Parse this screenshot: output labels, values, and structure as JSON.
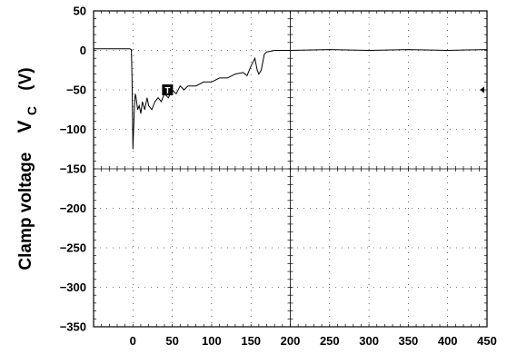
{
  "chart_data": {
    "type": "line",
    "ylabel_main": "Clamp voltage",
    "ylabel_symbol": "V",
    "ylabel_subscript": "C",
    "ylabel_unit": "(V)",
    "xlim": [
      -50,
      450
    ],
    "ylim": [
      -350,
      50
    ],
    "x_ticks": [
      "0",
      "50",
      "100",
      "150",
      "200",
      "250",
      "300",
      "350",
      "400",
      "450"
    ],
    "y_ticks": [
      "50",
      "0",
      "−50",
      "−100",
      "−150",
      "−200",
      "−250",
      "−300",
      "−350"
    ],
    "trigger_marker": "T",
    "grid": "dotted",
    "series": [
      {
        "x": [
          -50,
          -30,
          -10,
          -4,
          -2,
          -1,
          0,
          1,
          2,
          3,
          4,
          6,
          8,
          10,
          12,
          15,
          18,
          20,
          24,
          28,
          32,
          36,
          40,
          45,
          50,
          55,
          60,
          65,
          70,
          80,
          90,
          100,
          110,
          120,
          130,
          140,
          145,
          150,
          155,
          158,
          160,
          163,
          167,
          170,
          175,
          180,
          190,
          200,
          250,
          300,
          350,
          400,
          450
        ],
        "y": [
          2,
          2,
          2,
          2,
          1,
          -40,
          -125,
          -95,
          -70,
          -55,
          -60,
          -75,
          -70,
          -80,
          -65,
          -75,
          -60,
          -70,
          -75,
          -65,
          -60,
          -65,
          -55,
          -60,
          -50,
          -55,
          -45,
          -50,
          -45,
          -45,
          -40,
          -40,
          -35,
          -35,
          -30,
          -28,
          -32,
          -20,
          -10,
          -25,
          -30,
          -25,
          -5,
          -2,
          -1,
          0,
          0,
          0,
          1,
          0,
          1,
          0,
          1
        ]
      }
    ]
  }
}
